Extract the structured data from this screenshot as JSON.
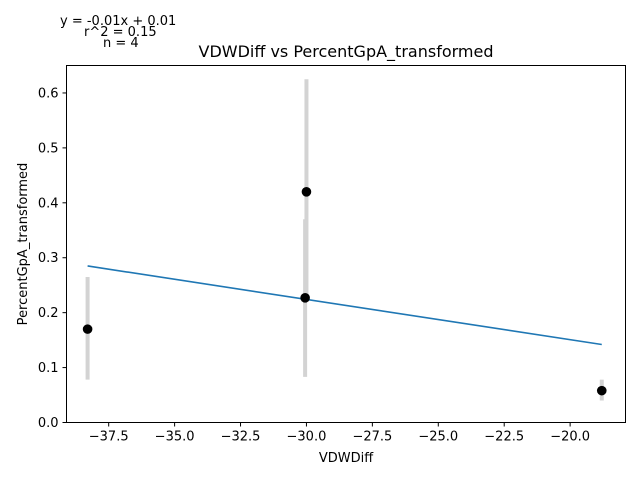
{
  "chart_data": {
    "type": "scatter",
    "title": "VDWDiff vs PercentGpA_transformed",
    "xlabel": "VDWDiff",
    "ylabel": "PercentGpA_transformed",
    "xlim": [
      -39.1,
      -17.9
    ],
    "ylim": [
      0.0,
      0.65
    ],
    "xticks": [
      -37.5,
      -35.0,
      -32.5,
      -30.0,
      -27.5,
      -25.0,
      -22.5,
      -20.0
    ],
    "xtick_labels": [
      "−37.5",
      "−35.0",
      "−32.5",
      "−30.0",
      "−27.5",
      "−25.0",
      "−22.5",
      "−20.0"
    ],
    "yticks": [
      0.0,
      0.1,
      0.2,
      0.3,
      0.4,
      0.5,
      0.6
    ],
    "ytick_labels": [
      "0.0",
      "0.1",
      "0.2",
      "0.3",
      "0.4",
      "0.5",
      "0.6"
    ],
    "points": [
      {
        "x": -38.3,
        "y": 0.17,
        "err_low": 0.078,
        "err_high": 0.265
      },
      {
        "x": -30.0,
        "y": 0.42,
        "err_low": 0.225,
        "err_high": 0.625
      },
      {
        "x": -30.05,
        "y": 0.227,
        "err_low": 0.083,
        "err_high": 0.37
      },
      {
        "x": -18.8,
        "y": 0.058,
        "err_low": 0.04,
        "err_high": 0.078
      }
    ],
    "fit_line": {
      "x": [
        -38.3,
        -18.8
      ],
      "y": [
        0.285,
        0.142
      ]
    },
    "annotations": {
      "equation": "y = -0.01x + 0.01",
      "r2": "r^2 = 0.15",
      "n": "n = 4"
    },
    "colors": {
      "points": "#000000",
      "errorbars": "#d3d3d3",
      "fit_line": "#1f77b4",
      "axes": "#000000"
    },
    "grid": false
  }
}
